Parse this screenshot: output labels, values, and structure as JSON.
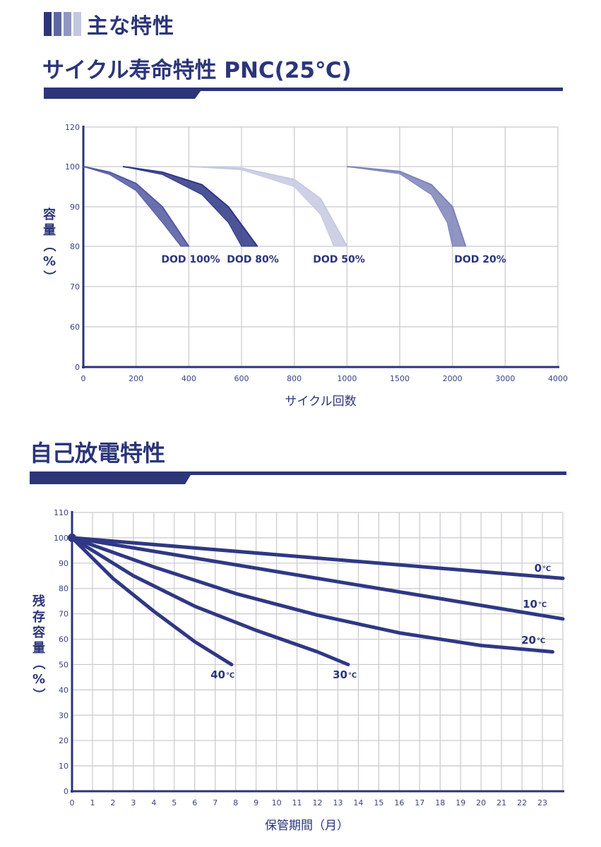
{
  "page": {
    "main_heading": "主な特性",
    "accent_colors": [
      "#2b3578",
      "#5d67a3",
      "#8f96c4",
      "#c3c7e2"
    ]
  },
  "chart_data": [
    {
      "type": "line",
      "title": "サイクル寿命特性 PNC(25℃)",
      "xlabel": "サイクル回数",
      "ylabel": "容量（%）",
      "x_ticks": [
        "0",
        "200",
        "400",
        "600",
        "800",
        "1000",
        "1500",
        "2000",
        "3000",
        "4000"
      ],
      "y_ticks": [
        "0",
        "60",
        "70",
        "80",
        "90",
        "100",
        "120"
      ],
      "grid": true,
      "series": [
        {
          "name": "DOD 100%",
          "label": "DOD 100%",
          "color": "#5058a0",
          "upper": [
            [
              0,
              100
            ],
            [
              100,
              98
            ],
            [
              200,
              94
            ],
            [
              300,
              86
            ],
            [
              370,
              80
            ]
          ],
          "lower": [
            [
              0,
              100
            ],
            [
              100,
              98.6
            ],
            [
              200,
              95.8
            ],
            [
              300,
              90
            ],
            [
              400,
              80
            ]
          ]
        },
        {
          "name": "DOD 80%",
          "label": "DOD 80%",
          "color": "#2d3685",
          "upper": [
            [
              150,
              100
            ],
            [
              300,
              98
            ],
            [
              450,
              93
            ],
            [
              550,
              86
            ],
            [
              600,
              80
            ]
          ],
          "lower": [
            [
              150,
              100
            ],
            [
              300,
              98.6
            ],
            [
              450,
              95.5
            ],
            [
              550,
              90
            ],
            [
              660,
              80
            ]
          ]
        },
        {
          "name": "DOD 50%",
          "label": "DOD 50%",
          "color": "#c5c9e2",
          "upper": [
            [
              400,
              100
            ],
            [
              600,
              99.2
            ],
            [
              800,
              95
            ],
            [
              900,
              88
            ],
            [
              950,
              80
            ]
          ],
          "lower": [
            [
              400,
              100
            ],
            [
              600,
              99.6
            ],
            [
              800,
              96.8
            ],
            [
              900,
              92
            ],
            [
              1000,
              80
            ]
          ]
        },
        {
          "name": "DOD 20%",
          "label": "DOD 20%",
          "color": "#7c83b9",
          "upper": [
            [
              1000,
              100
            ],
            [
              1500,
              98.2
            ],
            [
              1800,
              93
            ],
            [
              1950,
              86
            ],
            [
              2000,
              80
            ]
          ],
          "lower": [
            [
              1000,
              100
            ],
            [
              1500,
              98.8
            ],
            [
              1800,
              95.5
            ],
            [
              2000,
              90
            ],
            [
              2250,
              80
            ]
          ]
        }
      ]
    },
    {
      "type": "line",
      "title": "自己放電特性",
      "xlabel": "保管期間（月）",
      "ylabel": "残存容量（%）",
      "xlim": [
        0,
        24
      ],
      "ylim": [
        0,
        110
      ],
      "x_ticks": [
        "0",
        "1",
        "2",
        "3",
        "4",
        "5",
        "6",
        "7",
        "8",
        "9",
        "10",
        "11",
        "12",
        "13",
        "14",
        "15",
        "16",
        "17",
        "18",
        "19",
        "20",
        "21",
        "22",
        "23"
      ],
      "y_ticks": [
        "0",
        "10",
        "20",
        "30",
        "40",
        "50",
        "60",
        "70",
        "80",
        "90",
        "100",
        "110"
      ],
      "grid": true,
      "color": "#2f3883",
      "series": [
        {
          "name": "0℃",
          "num": "0",
          "unit": "℃",
          "points": [
            [
              0,
              100
            ],
            [
              24,
              84
            ]
          ]
        },
        {
          "name": "10℃",
          "num": "10",
          "unit": "℃",
          "points": [
            [
              0,
              100
            ],
            [
              6,
              92
            ],
            [
              12,
              84
            ],
            [
              18,
              76
            ],
            [
              24,
              68
            ]
          ]
        },
        {
          "name": "20℃",
          "num": "20",
          "unit": "℃",
          "points": [
            [
              0,
              100
            ],
            [
              4,
              88.5
            ],
            [
              8,
              78
            ],
            [
              12,
              69.5
            ],
            [
              16,
              62.5
            ],
            [
              20,
              57.5
            ],
            [
              23.5,
              55
            ]
          ]
        },
        {
          "name": "30℃",
          "num": "30",
          "unit": "℃",
          "points": [
            [
              0,
              100
            ],
            [
              3,
              85
            ],
            [
              6,
              73
            ],
            [
              9,
              63.5
            ],
            [
              12,
              55
            ],
            [
              13.5,
              50
            ]
          ]
        },
        {
          "name": "40℃",
          "num": "40",
          "unit": "℃",
          "points": [
            [
              0,
              100
            ],
            [
              2,
              84
            ],
            [
              4,
              71
            ],
            [
              6,
              59
            ],
            [
              7.8,
              50
            ]
          ]
        }
      ]
    }
  ]
}
